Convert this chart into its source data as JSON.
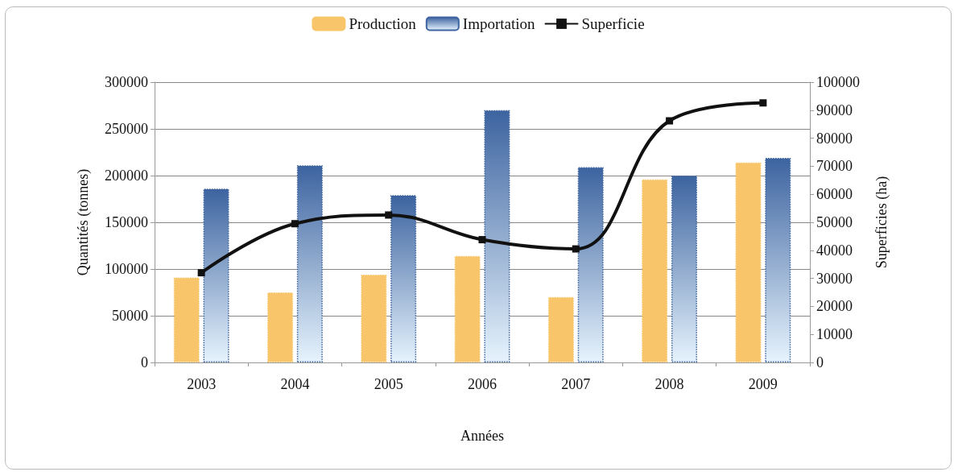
{
  "chart_data": {
    "type": "bar",
    "xlabel": "Années",
    "ylabel": "Quantités (tonnes)",
    "y2label": "Superficies (ha)",
    "categories": [
      "2003",
      "2004",
      "2005",
      "2006",
      "2007",
      "2008",
      "2009"
    ],
    "series": [
      {
        "name": "Production",
        "color": "#f8c56a",
        "values": [
          91000,
          75000,
          94000,
          114000,
          70000,
          196000,
          214000
        ]
      },
      {
        "name": "Importation",
        "color": "#3d64a0",
        "values": [
          186000,
          211000,
          179000,
          270000,
          209000,
          200000,
          219000
        ]
      },
      {
        "name": "Superficie",
        "type": "line",
        "axis": "y2",
        "color": "#111111",
        "marker": "square",
        "values": [
          32000,
          49500,
          52600,
          43800,
          40500,
          86200,
          92600
        ]
      }
    ],
    "ylim": [
      0,
      300000
    ],
    "yticks": [
      0,
      50000,
      100000,
      150000,
      200000,
      250000,
      300000
    ],
    "y2lim": [
      0,
      100000
    ],
    "y2ticks": [
      0,
      10000,
      20000,
      30000,
      40000,
      50000,
      60000,
      70000,
      80000,
      90000,
      100000
    ],
    "grid": "y",
    "legend": "top"
  }
}
